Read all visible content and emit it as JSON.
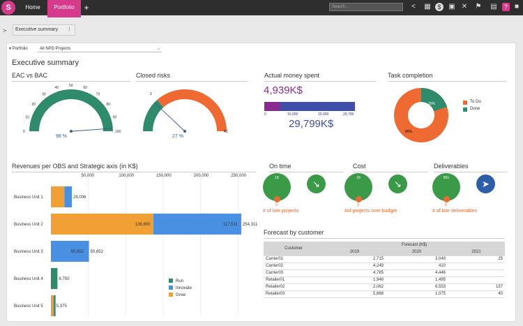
{
  "topbar": {
    "home_label": "Home",
    "portfolio_label": "Portfolio",
    "add_label": "+",
    "search_placeholder": "Search...",
    "icons": [
      "share-icon",
      "calendar-icon",
      "dollar-icon",
      "schedule-icon",
      "tools-icon",
      "flag-icon",
      "report-icon",
      "help-icon",
      "save-icon"
    ]
  },
  "subbar": {
    "tab_label": "Executive summary"
  },
  "filter": {
    "label": "Portfolio",
    "value": "All NPD Projects"
  },
  "page_title": "Executive summary",
  "eac": {
    "title": "EAC vs BAC",
    "value": "98 %",
    "ticks": [
      "0",
      "10",
      "20",
      "30",
      "40",
      "50",
      "60",
      "70",
      "80",
      "90",
      "100"
    ]
  },
  "risks": {
    "title": "Closed risks",
    "value": "27 %",
    "min": "1",
    "max": "41",
    "fraction": 0.27
  },
  "money": {
    "title": "Actual money spent",
    "actual": "4,939K$",
    "total": "29,799K$",
    "axis": [
      "0",
      "10,000",
      "20,000",
      "29,799"
    ],
    "actual_value": 4939,
    "total_value": 29799,
    "colors": {
      "actual": "#8b2a8e",
      "rest": "#3f4fa8"
    }
  },
  "tasks": {
    "title": "Task completion",
    "todo_pct": "80%",
    "done_pct": "20%",
    "legend": [
      "To Do",
      "Done"
    ],
    "colors": {
      "todo": "#ef6a32",
      "done": "#2e8b6b"
    },
    "todo_value": 80
  },
  "kpis": [
    {
      "title": "On time",
      "top": "18",
      "bottom": "3",
      "caption": "# of late projects",
      "arrow": "↘",
      "arrow_color": "#3a9a48"
    },
    {
      "title": "Cost",
      "top": "18",
      "bottom": "3",
      "caption": "#of projects over budget",
      "arrow": "↘",
      "arrow_color": "#3a9a48"
    },
    {
      "title": "Deliverables",
      "top": "851",
      "bottom": "0",
      "caption": "# of late deliverables",
      "arrow": "➤",
      "arrow_color": "#2d5ea8"
    }
  ],
  "revenues": {
    "title": "Revenues per OBS and Strategic axis (in K$)"
  },
  "forecast": {
    "title": "Forecast by customer",
    "header_customer": "Customer",
    "header_forecast": "Forecast (K$)",
    "years": [
      "2019",
      "2020",
      "2021"
    ],
    "rows": [
      {
        "customer": "Carrier01",
        "y2019": "2,715",
        "y2020": "3,049",
        "y2021": "25"
      },
      {
        "customer": "Carrier02",
        "y2019": "4,249",
        "y2020": "410",
        "y2021": ""
      },
      {
        "customer": "Carrier03",
        "y2019": "4,785",
        "y2020": "4,446",
        "y2021": ""
      },
      {
        "customer": "Retailer01",
        "y2019": "1,948",
        "y2020": "1,495",
        "y2021": ""
      },
      {
        "customer": "Retailer02",
        "y2019": "2,062",
        "y2020": "6,553",
        "y2021": "157"
      },
      {
        "customer": "Retailer03",
        "y2019": "5,868",
        "y2020": "1,075",
        "y2021": "40"
      }
    ]
  },
  "chart_data": [
    {
      "type": "bar",
      "orientation": "horizontal",
      "stacked": true,
      "categories": [
        "Business Unit 1",
        "Business Unit 2",
        "Business Unit 3",
        "Business Unit 4",
        "Business Unit 5"
      ],
      "x_ticks": [
        "50,000",
        "100,000",
        "150,000",
        "200,000",
        "250,000",
        "300,000"
      ],
      "xlim": [
        0,
        300000
      ],
      "series": [
        {
          "name": "Run",
          "values": [
            0,
            0,
            0,
            8750,
            1000
          ],
          "color": "#2e8b6b"
        },
        {
          "name": "Innovate",
          "values": [
            10000,
            117511,
            50852,
            0,
            1000
          ],
          "color": "#4a90e2"
        },
        {
          "name": "Grow",
          "values": [
            18006,
            136800,
            0,
            0,
            3375
          ],
          "color": "#f0a035"
        }
      ],
      "totals": [
        "28,006",
        "254,311",
        "50,852",
        "8,750",
        "5,375"
      ],
      "bar_labels": [
        {
          "category": "Business Unit 2",
          "series": "Grow",
          "text": "136,800"
        },
        {
          "category": "Business Unit 2",
          "series": "Innovate",
          "text": "117,511"
        },
        {
          "category": "Business Unit 3",
          "series": "Innovate",
          "text": "50,852"
        }
      ],
      "legend_position": "bottom-right"
    }
  ]
}
